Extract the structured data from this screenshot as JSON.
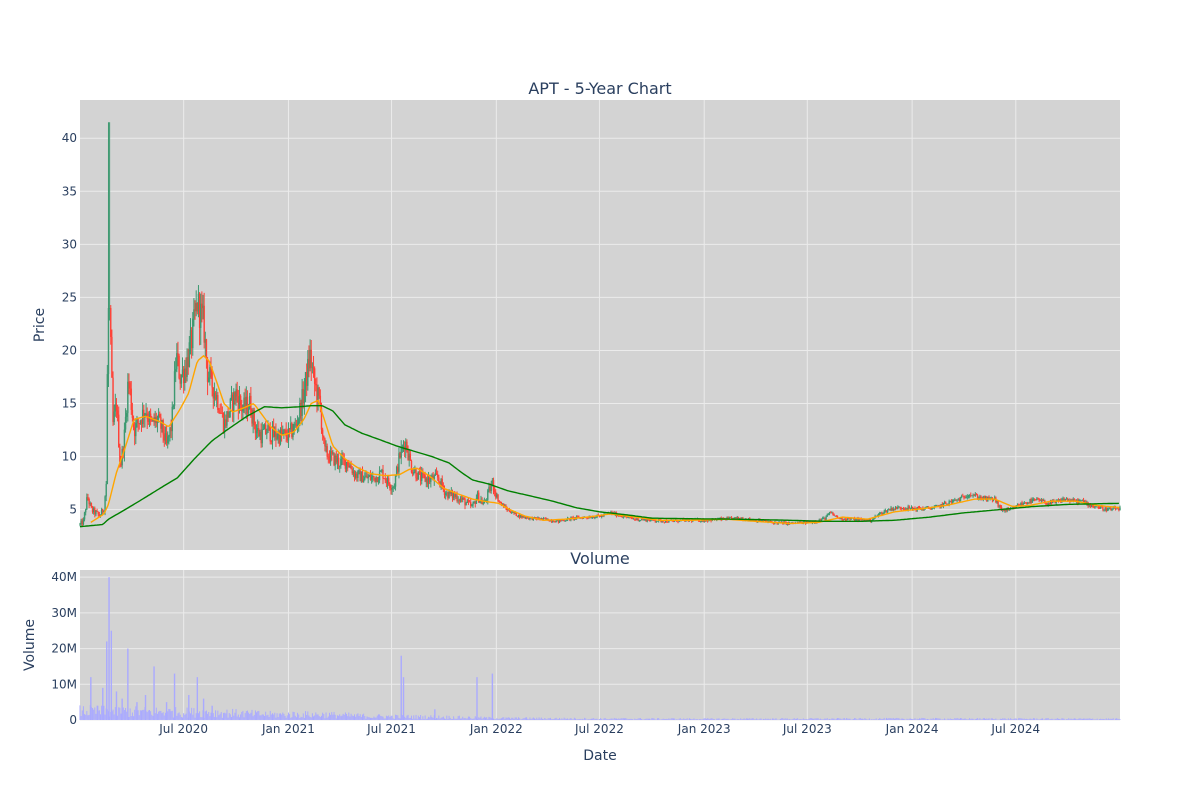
{
  "colors": {
    "plot_bg": "#d3d3d3",
    "grid": "#ebebeb",
    "text": "#2a3f5f",
    "candle_up": "#3d9970",
    "candle_down": "#ff4136",
    "ma_short": "#ffa500",
    "ma_long": "#008000",
    "volume": "#aaaaff"
  },
  "chart_data": [
    {
      "type": "candlestick",
      "title": "APT - 5-Year Chart",
      "ylabel": "Price",
      "xlabel": "",
      "x_range": [
        "2020-01-01",
        "2024-12-31"
      ],
      "ylim": [
        1.2,
        43.6
      ],
      "y_ticks": [
        5,
        10,
        15,
        20,
        25,
        30,
        35,
        40
      ],
      "y_tick_labels": [
        "5",
        "10",
        "15",
        "20",
        "25",
        "30",
        "35",
        "40"
      ],
      "x_ticks": [
        "2020-07-01",
        "2021-01-01",
        "2021-07-01",
        "2022-01-01",
        "2022-07-01",
        "2023-01-01",
        "2023-07-01",
        "2024-01-01",
        "2024-07-01"
      ],
      "grid": true,
      "legend": "none",
      "price_path": [
        [
          "2020-01-01",
          3.6
        ],
        [
          "2020-01-07",
          3.9
        ],
        [
          "2020-01-14",
          6.2
        ],
        [
          "2020-01-21",
          5.0
        ],
        [
          "2020-01-28",
          4.7
        ],
        [
          "2020-02-05",
          4.4
        ],
        [
          "2020-02-12",
          5.2
        ],
        [
          "2020-02-17",
          8.0
        ],
        [
          "2020-02-19",
          27.0
        ],
        [
          "2020-02-21",
          41.5
        ],
        [
          "2020-02-24",
          20.0
        ],
        [
          "2020-02-28",
          13.0
        ],
        [
          "2020-03-05",
          15.0
        ],
        [
          "2020-03-12",
          9.0
        ],
        [
          "2020-03-19",
          12.0
        ],
        [
          "2020-03-26",
          17.5
        ],
        [
          "2020-04-05",
          12.5
        ],
        [
          "2020-04-15",
          13.5
        ],
        [
          "2020-04-25",
          14.5
        ],
        [
          "2020-05-05",
          13.0
        ],
        [
          "2020-05-15",
          13.5
        ],
        [
          "2020-05-25",
          12.5
        ],
        [
          "2020-06-01",
          11.0
        ],
        [
          "2020-06-10",
          13.0
        ],
        [
          "2020-06-18",
          19.5
        ],
        [
          "2020-06-25",
          17.5
        ],
        [
          "2020-07-05",
          18.5
        ],
        [
          "2020-07-15",
          21.0
        ],
        [
          "2020-07-25",
          24.5
        ],
        [
          "2020-08-05",
          22.5
        ],
        [
          "2020-08-12",
          18.0
        ],
        [
          "2020-08-22",
          16.5
        ],
        [
          "2020-09-01",
          15.0
        ],
        [
          "2020-09-10",
          13.0
        ],
        [
          "2020-09-20",
          14.5
        ],
        [
          "2020-10-01",
          16.0
        ],
        [
          "2020-10-12",
          14.5
        ],
        [
          "2020-10-25",
          15.0
        ],
        [
          "2020-11-05",
          12.5
        ],
        [
          "2020-11-15",
          12.0
        ],
        [
          "2020-11-25",
          12.5
        ],
        [
          "2020-12-05",
          12.0
        ],
        [
          "2020-12-20",
          12.0
        ],
        [
          "2021-01-01",
          12.0
        ],
        [
          "2021-01-15",
          13.0
        ],
        [
          "2021-01-28",
          16.0
        ],
        [
          "2021-02-08",
          19.5
        ],
        [
          "2021-02-15",
          17.0
        ],
        [
          "2021-02-25",
          15.0
        ],
        [
          "2021-03-05",
          10.5
        ],
        [
          "2021-03-15",
          10.0
        ],
        [
          "2021-03-30",
          9.5
        ],
        [
          "2021-04-15",
          9.5
        ],
        [
          "2021-04-28",
          8.3
        ],
        [
          "2021-05-15",
          8.0
        ],
        [
          "2021-06-01",
          8.0
        ],
        [
          "2021-06-15",
          8.5
        ],
        [
          "2021-06-25",
          7.5
        ],
        [
          "2021-07-05",
          7.2
        ],
        [
          "2021-07-15",
          10.0
        ],
        [
          "2021-07-25",
          11.5
        ],
        [
          "2021-08-05",
          9.0
        ],
        [
          "2021-08-20",
          8.0
        ],
        [
          "2021-09-05",
          7.8
        ],
        [
          "2021-09-20",
          8.0
        ],
        [
          "2021-10-05",
          6.5
        ],
        [
          "2021-10-20",
          6.3
        ],
        [
          "2021-11-05",
          5.8
        ],
        [
          "2021-11-20",
          5.2
        ],
        [
          "2021-11-28",
          6.3
        ],
        [
          "2021-12-10",
          5.5
        ],
        [
          "2021-12-25",
          7.5
        ],
        [
          "2022-01-05",
          5.8
        ],
        [
          "2022-01-20",
          5.0
        ],
        [
          "2022-02-10",
          4.4
        ],
        [
          "2022-03-01",
          4.2
        ],
        [
          "2022-03-25",
          4.1
        ],
        [
          "2022-04-20",
          3.9
        ],
        [
          "2022-05-15",
          4.2
        ],
        [
          "2022-06-10",
          4.3
        ],
        [
          "2022-07-05",
          4.4
        ],
        [
          "2022-07-20",
          4.7
        ],
        [
          "2022-08-10",
          4.4
        ],
        [
          "2022-09-01",
          4.1
        ],
        [
          "2022-10-01",
          4.0
        ],
        [
          "2022-11-01",
          3.9
        ],
        [
          "2022-12-01",
          4.0
        ],
        [
          "2023-01-01",
          4.0
        ],
        [
          "2023-02-01",
          4.1
        ],
        [
          "2023-03-01",
          4.2
        ],
        [
          "2023-04-01",
          4.0
        ],
        [
          "2023-05-01",
          3.8
        ],
        [
          "2023-06-01",
          3.7
        ],
        [
          "2023-07-01",
          3.8
        ],
        [
          "2023-07-15",
          3.9
        ],
        [
          "2023-08-01",
          4.2
        ],
        [
          "2023-08-10",
          4.7
        ],
        [
          "2023-08-25",
          4.2
        ],
        [
          "2023-09-20",
          4.1
        ],
        [
          "2023-10-20",
          4.0
        ],
        [
          "2023-11-05",
          4.6
        ],
        [
          "2023-11-25",
          5.1
        ],
        [
          "2023-12-15",
          5.2
        ],
        [
          "2024-01-01",
          5.1
        ],
        [
          "2024-01-20",
          5.1
        ],
        [
          "2024-02-10",
          5.2
        ],
        [
          "2024-03-01",
          5.6
        ],
        [
          "2024-03-25",
          6.0
        ],
        [
          "2024-04-10",
          6.5
        ],
        [
          "2024-04-25",
          6.2
        ],
        [
          "2024-05-10",
          6.0
        ],
        [
          "2024-05-25",
          6.0
        ],
        [
          "2024-06-05",
          5.0
        ],
        [
          "2024-06-20",
          4.9
        ],
        [
          "2024-07-05",
          5.4
        ],
        [
          "2024-07-25",
          5.8
        ],
        [
          "2024-08-10",
          5.9
        ],
        [
          "2024-08-25",
          5.6
        ],
        [
          "2024-09-10",
          5.7
        ],
        [
          "2024-09-25",
          6.0
        ],
        [
          "2024-10-10",
          5.8
        ],
        [
          "2024-10-25",
          5.8
        ],
        [
          "2024-11-10",
          5.4
        ],
        [
          "2024-11-25",
          5.2
        ],
        [
          "2024-12-10",
          5.0
        ],
        [
          "2024-12-31",
          5.1
        ]
      ],
      "ma_short": [
        [
          "2020-01-20",
          3.8
        ],
        [
          "2020-02-12",
          4.6
        ],
        [
          "2020-02-20",
          5.5
        ],
        [
          "2020-03-05",
          8.5
        ],
        [
          "2020-03-20",
          10.8
        ],
        [
          "2020-04-05",
          13.5
        ],
        [
          "2020-04-25",
          13.8
        ],
        [
          "2020-05-20",
          13.3
        ],
        [
          "2020-06-05",
          12.8
        ],
        [
          "2020-06-25",
          14.5
        ],
        [
          "2020-07-10",
          16.0
        ],
        [
          "2020-07-25",
          19.0
        ],
        [
          "2020-08-05",
          19.5
        ],
        [
          "2020-08-15",
          19.0
        ],
        [
          "2020-08-25",
          17.5
        ],
        [
          "2020-09-10",
          15.0
        ],
        [
          "2020-09-25",
          14.2
        ],
        [
          "2020-10-15",
          14.6
        ],
        [
          "2020-11-01",
          15.0
        ],
        [
          "2020-11-15",
          14.0
        ],
        [
          "2020-12-01",
          12.8
        ],
        [
          "2020-12-20",
          12.0
        ],
        [
          "2021-01-10",
          12.3
        ],
        [
          "2021-01-28",
          13.5
        ],
        [
          "2021-02-10",
          15.0
        ],
        [
          "2021-02-22",
          15.3
        ],
        [
          "2021-03-05",
          13.5
        ],
        [
          "2021-03-20",
          11.0
        ],
        [
          "2021-04-10",
          9.8
        ],
        [
          "2021-05-01",
          9.0
        ],
        [
          "2021-05-25",
          8.4
        ],
        [
          "2021-06-20",
          8.2
        ],
        [
          "2021-07-15",
          8.3
        ],
        [
          "2021-08-01",
          8.8
        ],
        [
          "2021-08-15",
          8.9
        ],
        [
          "2021-09-05",
          8.2
        ],
        [
          "2021-10-01",
          7.0
        ],
        [
          "2021-10-25",
          6.5
        ],
        [
          "2021-11-20",
          6.0
        ],
        [
          "2021-12-10",
          5.8
        ],
        [
          "2022-01-05",
          5.6
        ],
        [
          "2022-01-25",
          5.0
        ],
        [
          "2022-02-20",
          4.4
        ],
        [
          "2022-03-25",
          4.0
        ],
        [
          "2022-05-01",
          4.1
        ],
        [
          "2022-06-10",
          4.3
        ],
        [
          "2022-07-20",
          4.6
        ],
        [
          "2022-09-01",
          4.3
        ],
        [
          "2022-10-15",
          4.0
        ],
        [
          "2022-12-10",
          4.0
        ],
        [
          "2023-02-10",
          4.1
        ],
        [
          "2023-04-01",
          3.9
        ],
        [
          "2023-06-01",
          3.7
        ],
        [
          "2023-07-20",
          3.8
        ],
        [
          "2023-09-01",
          4.3
        ],
        [
          "2023-10-15",
          4.1
        ],
        [
          "2023-12-01",
          4.8
        ],
        [
          "2024-01-20",
          5.1
        ],
        [
          "2024-03-01",
          5.4
        ],
        [
          "2024-04-20",
          6.0
        ],
        [
          "2024-05-25",
          6.0
        ],
        [
          "2024-06-25",
          5.3
        ],
        [
          "2024-07-25",
          5.4
        ],
        [
          "2024-09-01",
          5.8
        ],
        [
          "2024-10-15",
          5.8
        ],
        [
          "2024-11-20",
          5.4
        ],
        [
          "2024-12-31",
          5.2
        ]
      ],
      "ma_long": [
        [
          "2020-01-01",
          3.4
        ],
        [
          "2020-02-10",
          3.6
        ],
        [
          "2020-02-20",
          4.1
        ],
        [
          "2020-03-20",
          5.0
        ],
        [
          "2020-04-20",
          6.0
        ],
        [
          "2020-05-20",
          7.0
        ],
        [
          "2020-06-20",
          8.0
        ],
        [
          "2020-07-20",
          9.8
        ],
        [
          "2020-08-20",
          11.5
        ],
        [
          "2020-09-20",
          12.7
        ],
        [
          "2020-10-20",
          13.8
        ],
        [
          "2020-11-20",
          14.7
        ],
        [
          "2020-12-20",
          14.6
        ],
        [
          "2021-01-20",
          14.7
        ],
        [
          "2021-02-10",
          14.8
        ],
        [
          "2021-03-01",
          14.8
        ],
        [
          "2021-03-20",
          14.3
        ],
        [
          "2021-04-10",
          13.0
        ],
        [
          "2021-05-10",
          12.2
        ],
        [
          "2021-06-10",
          11.6
        ],
        [
          "2021-07-10",
          11.0
        ],
        [
          "2021-08-10",
          10.5
        ],
        [
          "2021-09-10",
          10.0
        ],
        [
          "2021-10-10",
          9.4
        ],
        [
          "2021-11-01",
          8.5
        ],
        [
          "2021-11-20",
          7.8
        ],
        [
          "2021-12-20",
          7.4
        ],
        [
          "2022-01-20",
          6.8
        ],
        [
          "2022-03-01",
          6.3
        ],
        [
          "2022-04-10",
          5.8
        ],
        [
          "2022-05-20",
          5.2
        ],
        [
          "2022-07-01",
          4.8
        ],
        [
          "2022-08-20",
          4.5
        ],
        [
          "2022-10-01",
          4.2
        ],
        [
          "2022-12-01",
          4.15
        ],
        [
          "2023-03-01",
          4.1
        ],
        [
          "2023-06-01",
          4.0
        ],
        [
          "2023-08-01",
          3.9
        ],
        [
          "2023-10-01",
          3.9
        ],
        [
          "2023-12-01",
          4.0
        ],
        [
          "2024-02-01",
          4.3
        ],
        [
          "2024-04-01",
          4.7
        ],
        [
          "2024-06-01",
          5.0
        ],
        [
          "2024-08-01",
          5.3
        ],
        [
          "2024-10-01",
          5.5
        ],
        [
          "2024-12-31",
          5.6
        ]
      ]
    },
    {
      "type": "bar",
      "title": "Volume",
      "ylabel": "Volume",
      "xlabel": "Date",
      "x_range": [
        "2020-01-01",
        "2024-12-31"
      ],
      "ylim": [
        0,
        42000000
      ],
      "y_ticks": [
        0,
        10000000,
        20000000,
        30000000,
        40000000
      ],
      "y_tick_labels": [
        "0",
        "10M",
        "20M",
        "30M",
        "40M"
      ],
      "x_ticks": [
        "2020-07-01",
        "2021-01-01",
        "2021-07-01",
        "2022-01-01",
        "2022-07-01",
        "2023-01-01",
        "2023-07-01",
        "2024-01-01",
        "2024-07-01"
      ],
      "x_tick_labels": [
        "Jul 2020",
        "Jan 2021",
        "Jul 2021",
        "Jan 2022",
        "Jul 2022",
        "Jan 2023",
        "Jul 2023",
        "Jan 2024",
        "Jul 2024"
      ],
      "grid": true,
      "volume_spikes": [
        [
          "2020-01-20",
          12000000
        ],
        [
          "2020-02-01",
          4000000
        ],
        [
          "2020-02-10",
          9000000
        ],
        [
          "2020-02-17",
          22000000
        ],
        [
          "2020-02-21",
          40000000
        ],
        [
          "2020-02-25",
          25000000
        ],
        [
          "2020-03-05",
          8000000
        ],
        [
          "2020-03-15",
          6000000
        ],
        [
          "2020-03-25",
          20000000
        ],
        [
          "2020-04-10",
          5000000
        ],
        [
          "2020-04-25",
          7000000
        ],
        [
          "2020-05-10",
          15000000
        ],
        [
          "2020-06-01",
          5000000
        ],
        [
          "2020-06-15",
          13000000
        ],
        [
          "2020-07-10",
          7000000
        ],
        [
          "2020-07-25",
          12000000
        ],
        [
          "2020-08-05",
          6000000
        ],
        [
          "2020-08-20",
          4000000
        ],
        [
          "2021-07-18",
          18000000
        ],
        [
          "2021-07-22",
          12000000
        ],
        [
          "2021-09-15",
          3000000
        ],
        [
          "2021-11-28",
          12000000
        ],
        [
          "2021-12-25",
          13000000
        ]
      ],
      "volume_base": [
        [
          "2020-01-01",
          2500000
        ],
        [
          "2020-09-01",
          2000000
        ],
        [
          "2020-12-01",
          1500000
        ],
        [
          "2021-03-01",
          1500000
        ],
        [
          "2021-06-01",
          1000000
        ],
        [
          "2021-10-01",
          800000
        ],
        [
          "2022-01-01",
          500000
        ],
        [
          "2022-07-01",
          350000
        ],
        [
          "2023-01-01",
          300000
        ],
        [
          "2024-01-01",
          350000
        ],
        [
          "2024-12-31",
          300000
        ]
      ]
    }
  ]
}
